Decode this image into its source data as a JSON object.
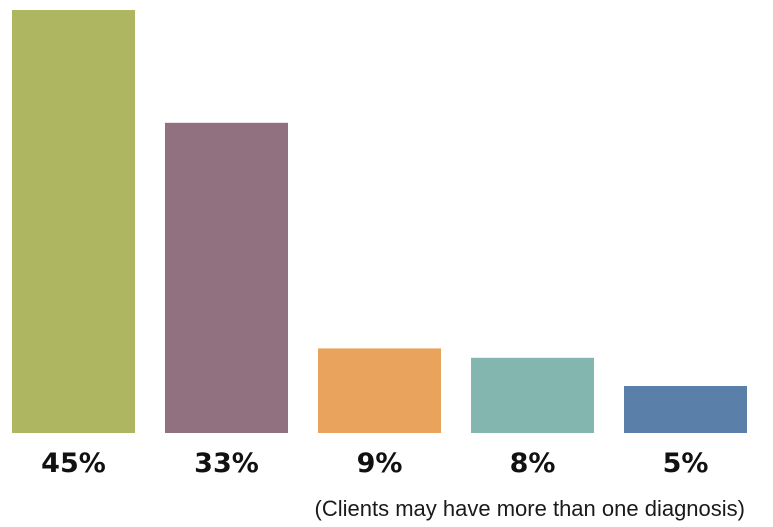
{
  "chart_data": {
    "type": "bar",
    "values": [
      45,
      33,
      9,
      8,
      5
    ],
    "data_labels": [
      "45%",
      "33%",
      "9%",
      "8%",
      "5%"
    ],
    "colors": [
      "#afb662",
      "#91717f",
      "#e9a35d",
      "#84b6b0",
      "#5a7fa8"
    ],
    "ylim": [
      0,
      45
    ],
    "grid": false,
    "legend": "none",
    "annotation": "(Clients may have more than one diagnosis)"
  }
}
